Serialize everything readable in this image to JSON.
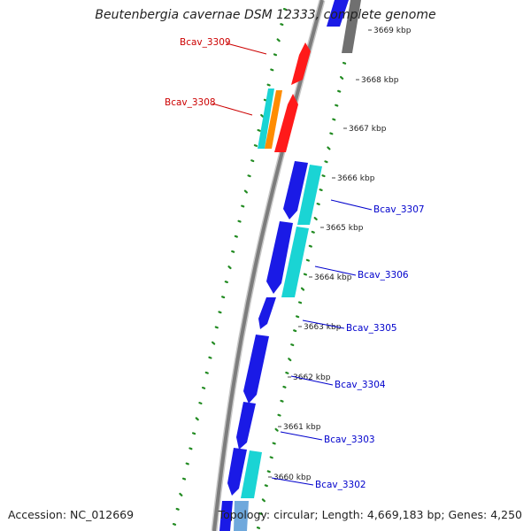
{
  "title": "Beutenbergia cavernae DSM 12333, complete genome",
  "accession": "Accession: NC_012669",
  "summary": "Topology: circular; Length: 4,669,183 bp; Genes: 4,250",
  "colors": {
    "backbone": "#8c8c8c",
    "gc_dots": "#228b22",
    "forward_label": "#0000cc",
    "reverse_label": "#cc0000",
    "cds_blue": "#1a1ae6",
    "cds_cyan": "#1ad4d4",
    "cds_red": "#ff1a1a",
    "cds_orange": "#ff8c00",
    "cds_gray": "#808080"
  },
  "scale_ticks": [
    "3669 kbp",
    "3668 kbp",
    "3667 kbp",
    "3666 kbp",
    "3665 kbp",
    "3664 kbp",
    "3663 kbp",
    "3662 kbp",
    "3661 kbp",
    "3660 kbp"
  ],
  "gene_labels": [
    "Bcav_3309",
    "Bcav_3308",
    "Bcav_3307",
    "Bcav_3306",
    "Bcav_3305",
    "Bcav_3304",
    "Bcav_3303",
    "Bcav_3302"
  ]
}
